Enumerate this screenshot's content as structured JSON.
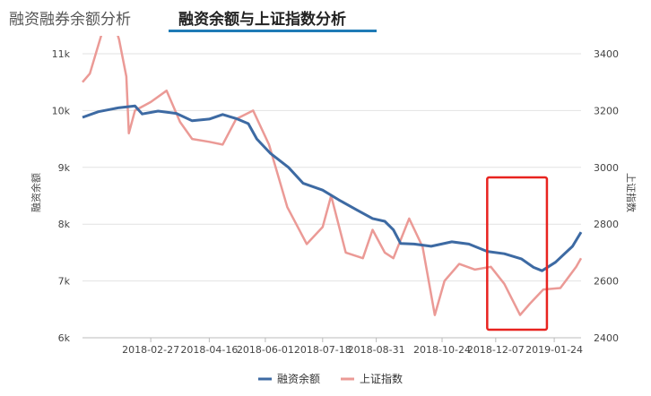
{
  "tabs": [
    {
      "label": "融资融券余额分析",
      "active": false
    },
    {
      "label": "融资余额与上证指数分析",
      "active": true
    }
  ],
  "colors": {
    "balance": "#3d6aa3",
    "index": "#eb9a96",
    "highlight": "#e8231f",
    "tab_accent": "#1f7bb6"
  },
  "chart_data": {
    "type": "line",
    "ylabel_left": "融资余额",
    "ylabel_right": "上证指数",
    "y_left": {
      "min": 6000,
      "max": 11000,
      "ticks": [
        6000,
        7000,
        8000,
        9000,
        10000,
        11000
      ],
      "tick_labels": [
        "6k",
        "7k",
        "8k",
        "9k",
        "10k",
        "11k"
      ]
    },
    "y_right": {
      "min": 2400,
      "max": 3400,
      "ticks": [
        2400,
        2600,
        2800,
        3000,
        3200,
        3400
      ],
      "tick_labels": [
        "2400",
        "2600",
        "2800",
        "3000",
        "3200",
        "3400"
      ]
    },
    "x_range": [
      "2018-01-02",
      "2019-02-15"
    ],
    "x_ticks": [
      "2018-02-27",
      "2018-04-16",
      "2018-06-01",
      "2018-07-18",
      "2018-08-31",
      "2018-10-24",
      "2018-12-07",
      "2019-01-24"
    ],
    "grid": {
      "horizontal": true,
      "vertical": false
    },
    "legend": {
      "position": "bottom"
    },
    "highlight_box": {
      "x_start": "2018-11-30",
      "x_end": "2019-01-18"
    },
    "series": [
      {
        "name": "融资余额",
        "axis": "left",
        "points": [
          [
            "2018-01-02",
            9880
          ],
          [
            "2018-01-15",
            9980
          ],
          [
            "2018-02-01",
            10050
          ],
          [
            "2018-02-14",
            10080
          ],
          [
            "2018-02-20",
            9940
          ],
          [
            "2018-03-05",
            9990
          ],
          [
            "2018-03-20",
            9950
          ],
          [
            "2018-04-02",
            9820
          ],
          [
            "2018-04-16",
            9850
          ],
          [
            "2018-04-27",
            9930
          ],
          [
            "2018-05-08",
            9860
          ],
          [
            "2018-05-18",
            9770
          ],
          [
            "2018-05-25",
            9500
          ],
          [
            "2018-06-05",
            9250
          ],
          [
            "2018-06-20",
            9000
          ],
          [
            "2018-07-02",
            8720
          ],
          [
            "2018-07-18",
            8600
          ],
          [
            "2018-07-31",
            8430
          ],
          [
            "2018-08-15",
            8250
          ],
          [
            "2018-08-28",
            8100
          ],
          [
            "2018-09-07",
            8050
          ],
          [
            "2018-09-14",
            7900
          ],
          [
            "2018-09-20",
            7660
          ],
          [
            "2018-10-01",
            7650
          ],
          [
            "2018-10-15",
            7610
          ],
          [
            "2018-11-01",
            7690
          ],
          [
            "2018-11-15",
            7650
          ],
          [
            "2018-11-30",
            7520
          ],
          [
            "2018-12-14",
            7480
          ],
          [
            "2018-12-28",
            7390
          ],
          [
            "2019-01-07",
            7240
          ],
          [
            "2019-01-14",
            7180
          ],
          [
            "2019-01-25",
            7330
          ],
          [
            "2019-02-08",
            7610
          ],
          [
            "2019-02-15",
            7860
          ]
        ]
      },
      {
        "name": "上证指数",
        "axis": "right",
        "points": [
          [
            "2018-01-02",
            3300
          ],
          [
            "2018-01-08",
            3330
          ],
          [
            "2018-01-24",
            3560
          ],
          [
            "2018-02-01",
            3450
          ],
          [
            "2018-02-07",
            3320
          ],
          [
            "2018-02-09",
            3120
          ],
          [
            "2018-02-14",
            3200
          ],
          [
            "2018-02-27",
            3230
          ],
          [
            "2018-03-12",
            3270
          ],
          [
            "2018-03-23",
            3160
          ],
          [
            "2018-04-02",
            3100
          ],
          [
            "2018-04-16",
            3090
          ],
          [
            "2018-04-27",
            3080
          ],
          [
            "2018-05-08",
            3170
          ],
          [
            "2018-05-22",
            3200
          ],
          [
            "2018-06-04",
            3080
          ],
          [
            "2018-06-19",
            2860
          ],
          [
            "2018-07-05",
            2730
          ],
          [
            "2018-07-18",
            2790
          ],
          [
            "2018-07-25",
            2900
          ],
          [
            "2018-08-06",
            2700
          ],
          [
            "2018-08-20",
            2680
          ],
          [
            "2018-08-28",
            2780
          ],
          [
            "2018-09-07",
            2700
          ],
          [
            "2018-09-14",
            2680
          ],
          [
            "2018-09-27",
            2820
          ],
          [
            "2018-10-08",
            2720
          ],
          [
            "2018-10-18",
            2480
          ],
          [
            "2018-10-26",
            2600
          ],
          [
            "2018-11-07",
            2660
          ],
          [
            "2018-11-20",
            2640
          ],
          [
            "2018-12-03",
            2650
          ],
          [
            "2018-12-14",
            2590
          ],
          [
            "2018-12-27",
            2480
          ],
          [
            "2019-01-04",
            2520
          ],
          [
            "2019-01-15",
            2570
          ],
          [
            "2019-01-29",
            2575
          ],
          [
            "2019-02-11",
            2650
          ],
          [
            "2019-02-15",
            2680
          ]
        ]
      }
    ]
  }
}
